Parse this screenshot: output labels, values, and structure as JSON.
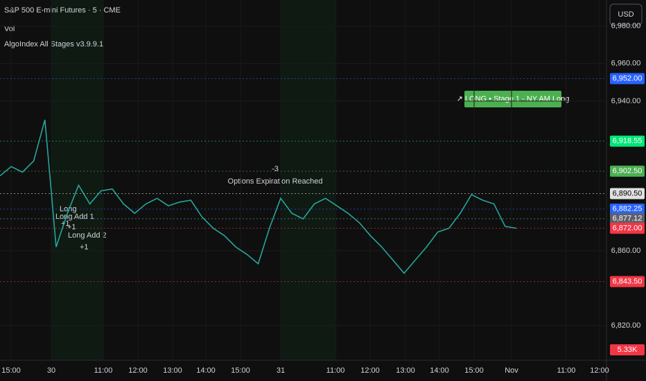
{
  "header": {
    "symbol": "S&P 500 E-mini Futures · 5 · CME",
    "indicator_1": "Vol",
    "indicator_2": "AlgoIndex All Stages v3.9.9.1",
    "currency": "USD"
  },
  "chart_data": {
    "type": "line",
    "ylim": [
      6800,
      6994
    ],
    "yticks": [
      {
        "value": 6820,
        "label": "6,820.00"
      },
      {
        "value": 6860,
        "label": "6,860.00"
      },
      {
        "value": 6940,
        "label": "6,940.00"
      },
      {
        "value": 6960,
        "label": "6,960.00"
      },
      {
        "value": 6980,
        "label": "6,980.00"
      }
    ],
    "series": [
      {
        "name": "Close",
        "color": "#26a69a",
        "values": [
          6900,
          6905,
          6902,
          6908,
          6930,
          6862,
          6880,
          6895,
          6885,
          6892,
          6893,
          6885,
          6880,
          6885,
          6888,
          6884,
          6886,
          6887,
          6878,
          6872,
          6868,
          6862,
          6858,
          6853,
          6872,
          6888,
          6880,
          6877,
          6885,
          6888,
          6884,
          6880,
          6875,
          6868,
          6862,
          6855,
          6848,
          6855,
          6862,
          6870,
          6872,
          6880,
          6890,
          6887,
          6885,
          6873,
          6872
        ]
      }
    ],
    "price_badges": [
      {
        "value": 6952,
        "label": "6,952.00",
        "color": "#2962ff"
      },
      {
        "value": 6918.55,
        "label": "6,918.55",
        "color": "#00e676"
      },
      {
        "value": 6902.5,
        "label": "6,902.50",
        "color": "#4caf50"
      },
      {
        "value": 6890.5,
        "label": "6,890.50",
        "color": "#e0e0e0"
      },
      {
        "value": 6882.25,
        "label": "6,882.25",
        "color": "#2962ff"
      },
      {
        "value": 6877.12,
        "label": "6,877.12",
        "color": "#26a69a"
      },
      {
        "value": 6877.12,
        "label": "6,877.12",
        "color": "#5d606b"
      },
      {
        "value": 6872,
        "label": "6,872.00",
        "color": "#f23645"
      },
      {
        "value": 6843.5,
        "label": "6,843.50",
        "color": "#f23645"
      }
    ],
    "volume_badge": "5.33K",
    "time_labels": [
      "15:00",
      "30",
      "11:00",
      "12:00",
      "13:00",
      "14:00",
      "15:00",
      "31",
      "11:00",
      "12:00",
      "13:00",
      "14:00",
      "15:00",
      "Nov",
      "11:00",
      "12:00"
    ],
    "annotations": {
      "signal": "↗ LONG • Stage 1 - NY AM Long",
      "expiry": "Options Expiration Reached",
      "minus": "-3",
      "long": "Long",
      "add1": "Long Add 1",
      "plus1": "+1",
      "add2": "Long Add 2",
      "plus2": "+1",
      "plus3": "+1"
    }
  }
}
